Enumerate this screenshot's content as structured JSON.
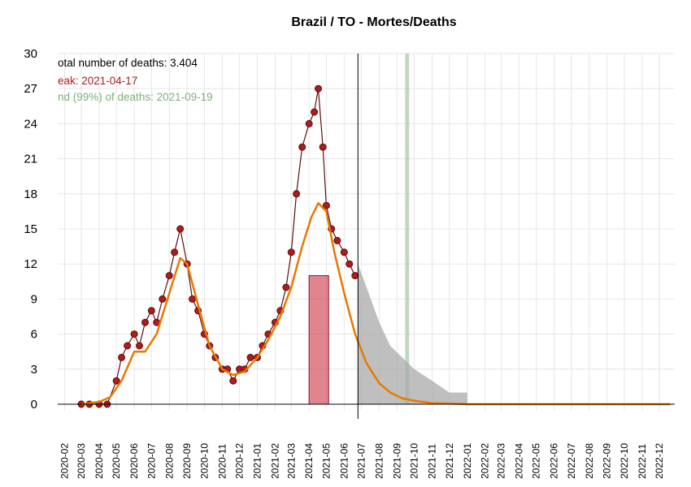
{
  "chart_data": {
    "type": "line",
    "title": "Brazil / TO - Mortes/Deaths",
    "xlabel": "",
    "ylabel": "",
    "ylim": [
      0,
      30
    ],
    "y_ticks": [
      "0",
      "3",
      "6",
      "9",
      "12",
      "15",
      "18",
      "21",
      "24",
      "27",
      "30"
    ],
    "x_range": [
      "2020-01-20",
      "2023-01-25"
    ],
    "x_ticks": [
      "2020-02",
      "2020-03",
      "2020-04",
      "2020-05",
      "2020-06",
      "2020-07",
      "2020-08",
      "2020-09",
      "2020-10",
      "2020-11",
      "2020-12",
      "2021-01",
      "2021-02",
      "2021-03",
      "2021-04",
      "2021-05",
      "2021-06",
      "2021-07",
      "2021-08",
      "2021-09",
      "2021-10",
      "2021-11",
      "2021-12",
      "2022-01",
      "2022-02",
      "2022-03",
      "2022-04",
      "2022-05",
      "2022-06",
      "2022-07",
      "2022-08",
      "2022-09",
      "2022-10",
      "2022-11",
      "2022-12"
    ],
    "grid": true,
    "today_line": "2021-06-25",
    "annotations": {
      "total": "otal number of deaths: 3.404",
      "peak": "eak: 2021-04-17",
      "end": "nd (99%) of deaths: 2021-09-19"
    },
    "peak_band": {
      "start": "2021-04-01",
      "end": "2021-05-05",
      "level": 11,
      "color": "#cc3344"
    },
    "end_band": {
      "start": "2021-09-15",
      "end": "2021-09-22",
      "color": "#88bb88"
    },
    "colors": {
      "daily": "#b01a1a",
      "daily_line": "#5a0f0f",
      "smooth": "#e87800",
      "forecast": "#aaaaaa",
      "grid": "#e6e6e6"
    },
    "series": [
      {
        "name": "daily_deaths_weekly_points",
        "x": [
          "2020-03-01",
          "2020-03-15",
          "2020-04-01",
          "2020-04-15",
          "2020-05-01",
          "2020-05-10",
          "2020-05-20",
          "2020-06-01",
          "2020-06-10",
          "2020-06-20",
          "2020-07-01",
          "2020-07-10",
          "2020-07-20",
          "2020-08-01",
          "2020-08-10",
          "2020-08-20",
          "2020-09-01",
          "2020-09-10",
          "2020-09-20",
          "2020-10-01",
          "2020-10-10",
          "2020-10-20",
          "2020-11-01",
          "2020-11-10",
          "2020-11-20",
          "2020-12-01",
          "2020-12-10",
          "2020-12-20",
          "2021-01-01",
          "2021-01-10",
          "2021-01-20",
          "2021-02-01",
          "2021-02-10",
          "2021-02-20",
          "2021-03-01",
          "2021-03-10",
          "2021-03-20",
          "2021-04-01",
          "2021-04-10",
          "2021-04-17",
          "2021-04-25",
          "2021-05-01",
          "2021-05-10",
          "2021-05-20",
          "2021-06-01",
          "2021-06-10",
          "2021-06-20"
        ],
        "y": [
          0,
          0,
          0,
          0,
          2,
          4,
          5,
          6,
          5,
          7,
          8,
          7,
          9,
          11,
          13,
          15,
          12,
          9,
          8,
          6,
          5,
          4,
          3,
          3,
          2,
          3,
          3,
          4,
          4,
          5,
          6,
          7,
          8,
          10,
          13,
          18,
          22,
          24,
          25,
          27,
          22,
          17,
          15,
          14,
          13,
          12,
          11
        ]
      },
      {
        "name": "smoothed",
        "x": [
          "2020-03-01",
          "2020-04-01",
          "2020-04-20",
          "2020-05-10",
          "2020-06-01",
          "2020-06-20",
          "2020-07-10",
          "2020-08-01",
          "2020-08-20",
          "2020-09-01",
          "2020-09-20",
          "2020-10-10",
          "2020-11-01",
          "2020-11-20",
          "2020-12-10",
          "2021-01-01",
          "2021-01-20",
          "2021-02-10",
          "2021-03-01",
          "2021-03-20",
          "2021-04-05",
          "2021-04-17",
          "2021-05-01",
          "2021-05-15",
          "2021-06-01",
          "2021-06-20",
          "2021-07-10",
          "2021-08-01",
          "2021-08-20",
          "2021-09-10",
          "2021-10-01",
          "2021-11-01",
          "2021-12-01",
          "2022-01-01",
          "2022-06-01",
          "2022-12-20"
        ],
        "y": [
          0,
          0.2,
          0.6,
          2,
          4.5,
          4.5,
          6,
          9.5,
          12.5,
          12,
          8.5,
          5,
          3,
          2.5,
          2.8,
          4,
          5.5,
          7.5,
          10,
          13.5,
          16,
          17.2,
          16.5,
          13,
          9.5,
          6,
          3.5,
          1.8,
          1,
          0.5,
          0.3,
          0.1,
          0.05,
          0,
          0,
          0
        ]
      },
      {
        "name": "forecast_range",
        "x": [
          "2021-06-25",
          "2021-07-10",
          "2021-08-01",
          "2021-08-20",
          "2021-09-10",
          "2021-10-01",
          "2021-11-01",
          "2021-12-01",
          "2022-01-01"
        ],
        "y_low": [
          0,
          0,
          0,
          0,
          0,
          0,
          0,
          0,
          0
        ],
        "y_high": [
          12,
          10,
          7,
          5,
          4,
          3,
          2,
          1,
          1
        ]
      }
    ]
  }
}
